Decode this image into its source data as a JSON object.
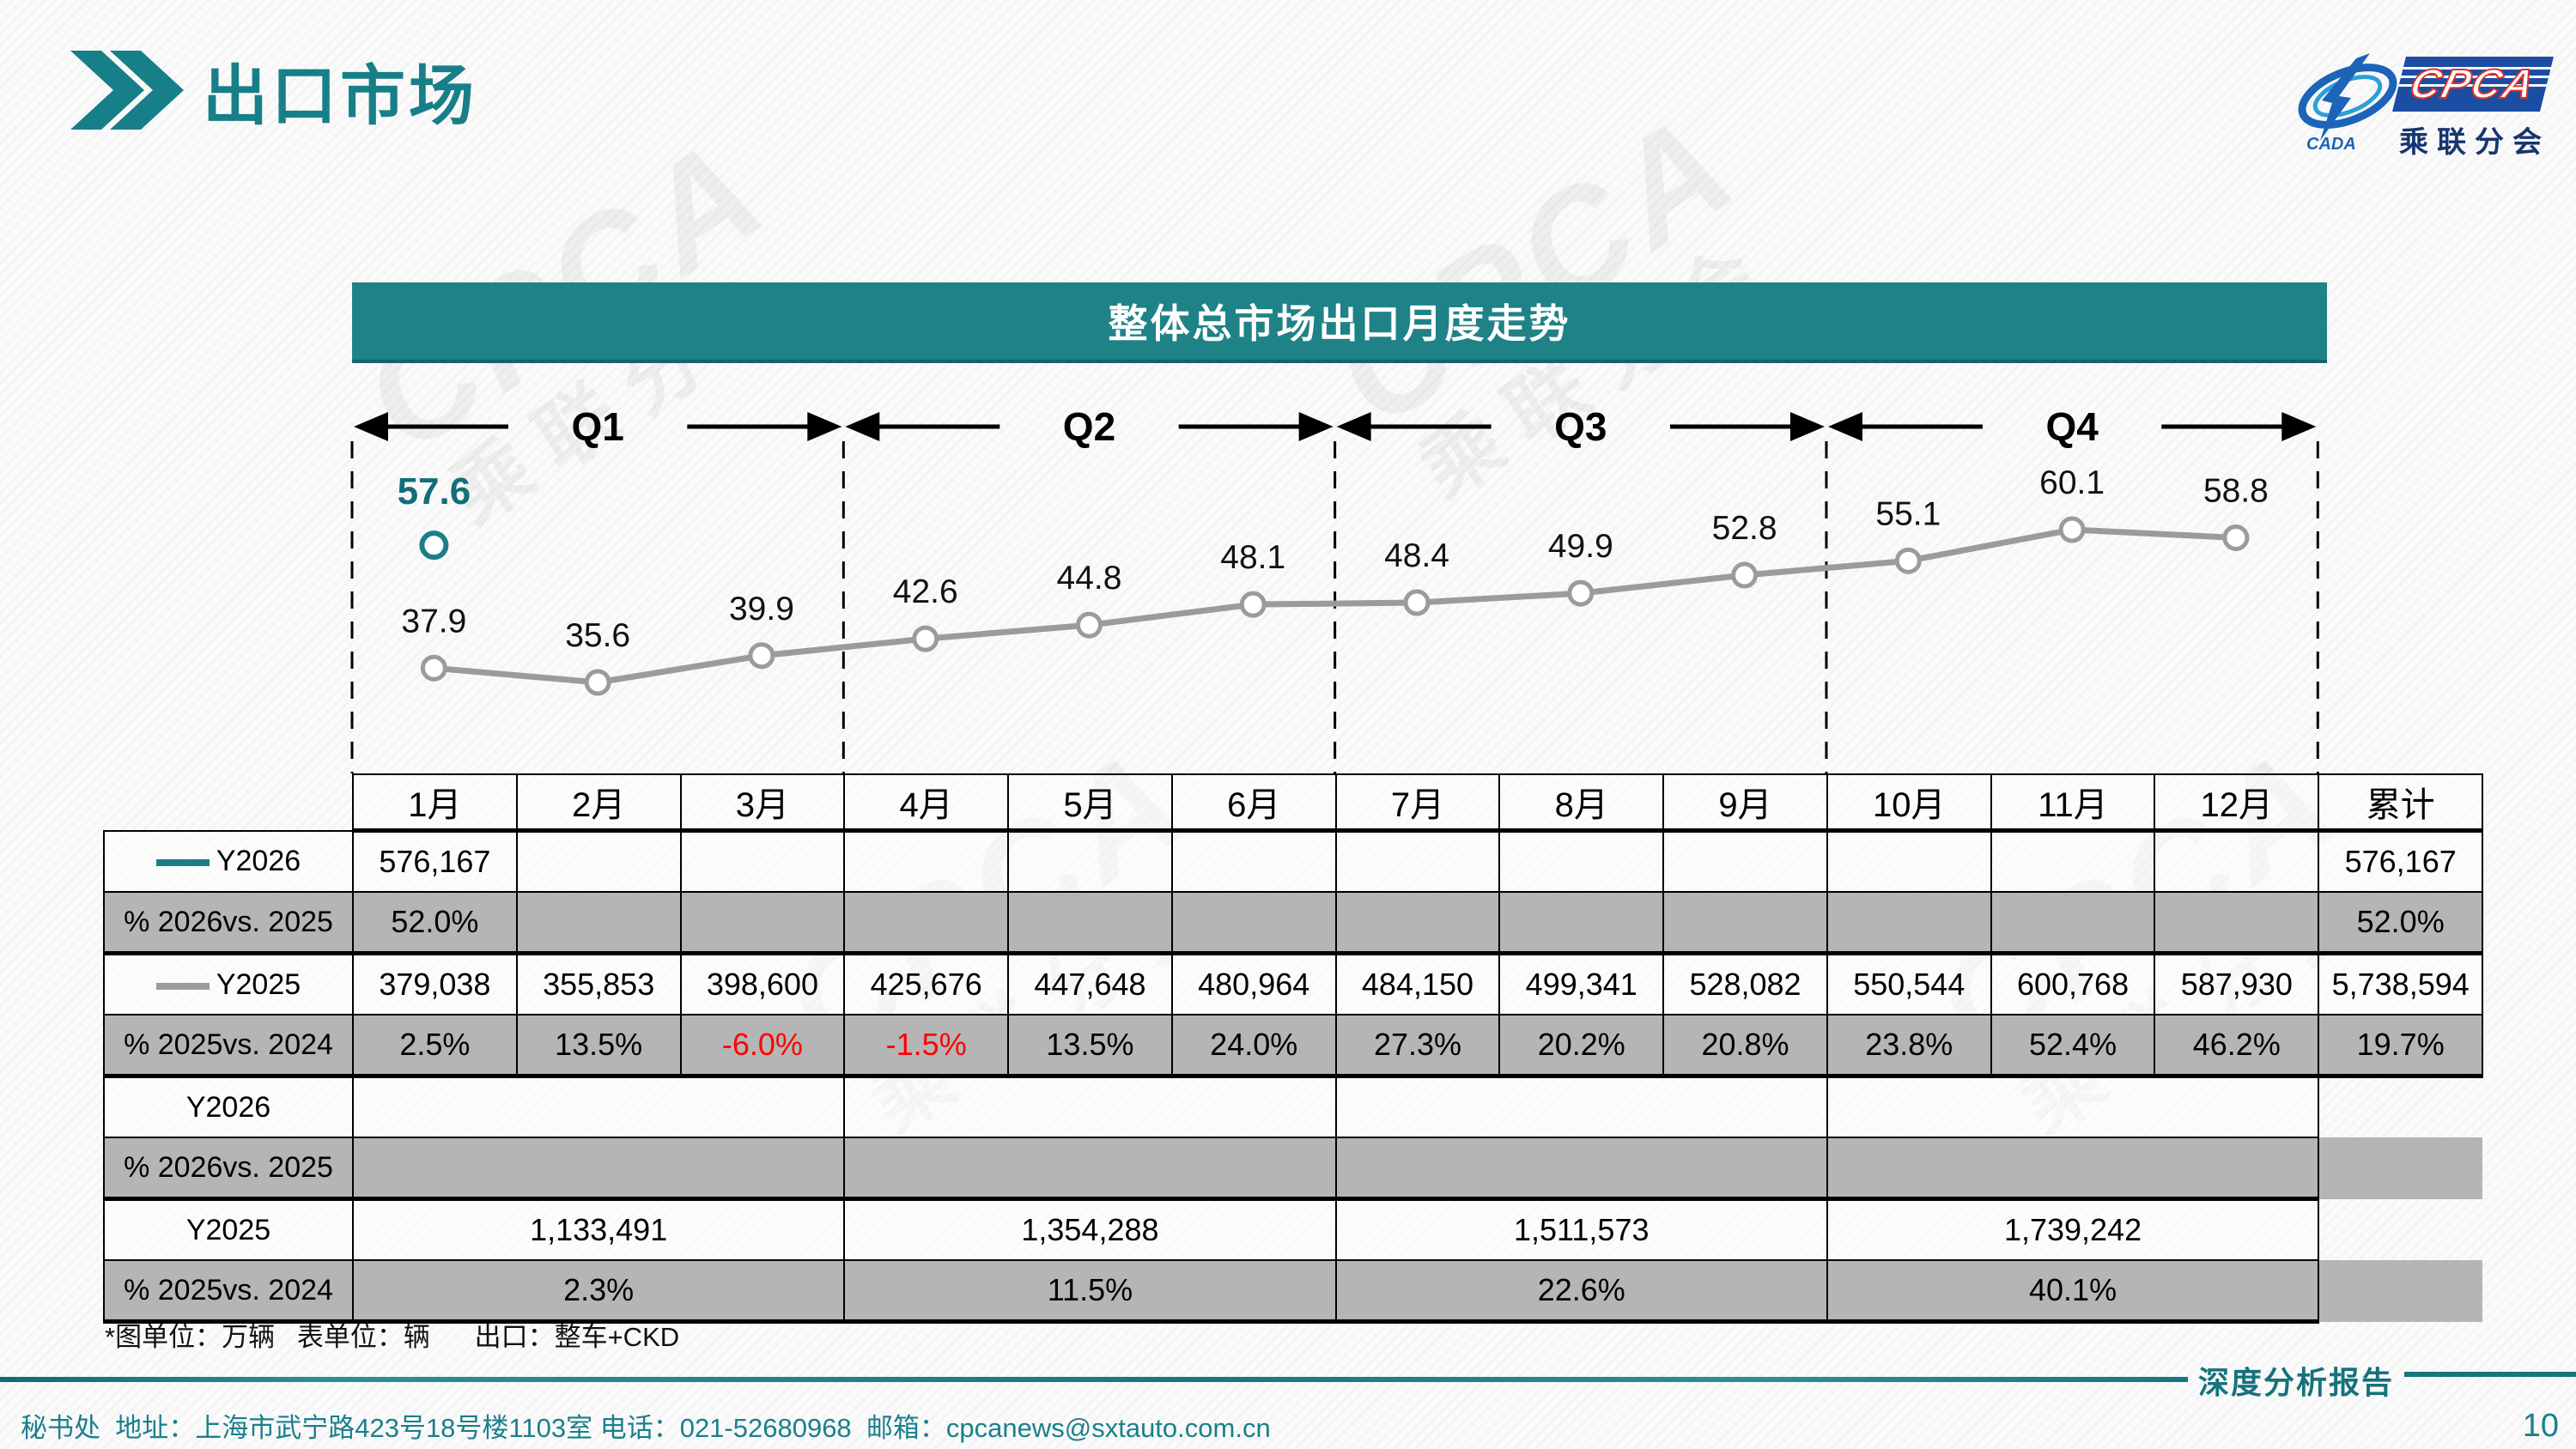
{
  "page": {
    "title": "出口市场",
    "page_number": "10",
    "report_label": "深度分析报告",
    "footer_contact": "秘书处  地址：上海市武宁路423号18号楼1103室 电话：021-52680968  邮箱：cpcanews@sxtauto.com.cn",
    "footnote": "*图单位：万辆   表单位：辆      出口：整车+CKD"
  },
  "logo": {
    "cpca": "CPCA",
    "cada": "CADA",
    "subtitle": "乘联分会"
  },
  "colors": {
    "accent": "#1A7F87",
    "bar": "#1F8287",
    "teal_series": "#1A7F87",
    "gray_series": "#9B9B9B",
    "shaded_row": "#B5B5B5",
    "negative": "#FF0000",
    "label_black": "#111111"
  },
  "chart_header": "整体总市场出口月度走势",
  "quarters": [
    "Q1",
    "Q2",
    "Q3",
    "Q4"
  ],
  "chart_data": {
    "type": "line",
    "title": "整体总市场出口月度走势",
    "unit": "万辆",
    "x": [
      "1月",
      "2月",
      "3月",
      "4月",
      "5月",
      "6月",
      "7月",
      "8月",
      "9月",
      "10月",
      "11月",
      "12月"
    ],
    "series": [
      {
        "name": "Y2026",
        "color": "#1A7F87",
        "label_color": "#136E78",
        "values": [
          57.6,
          null,
          null,
          null,
          null,
          null,
          null,
          null,
          null,
          null,
          null,
          null
        ]
      },
      {
        "name": "Y2025",
        "color": "#9B9B9B",
        "label_color": "#111111",
        "values": [
          37.9,
          35.6,
          39.9,
          42.6,
          44.8,
          48.1,
          48.4,
          49.9,
          52.8,
          55.1,
          60.1,
          58.8
        ]
      }
    ],
    "ylim": [
      30,
      65
    ],
    "grid": false,
    "legend_position": "table-left-column"
  },
  "table": {
    "month_headers": [
      "1月",
      "2月",
      "3月",
      "4月",
      "5月",
      "6月",
      "7月",
      "8月",
      "9月",
      "10月",
      "11月",
      "12月"
    ],
    "total_header": "累计",
    "monthly_rows": [
      {
        "label": "Y2026",
        "swatch": "#1A7F87",
        "shaded": false,
        "values": [
          "576,167",
          "",
          "",
          "",
          "",
          "",
          "",
          "",
          "",
          "",
          "",
          ""
        ],
        "total": "576,167"
      },
      {
        "label": "% 2026vs. 2025",
        "shaded": true,
        "values": [
          "52.0%",
          "",
          "",
          "",
          "",
          "",
          "",
          "",
          "",
          "",
          "",
          ""
        ],
        "total": "52.0%"
      },
      {
        "label": "Y2025",
        "swatch": "#9B9B9B",
        "shaded": false,
        "values": [
          "379,038",
          "355,853",
          "398,600",
          "425,676",
          "447,648",
          "480,964",
          "484,150",
          "499,341",
          "528,082",
          "550,544",
          "600,768",
          "587,930"
        ],
        "total": "5,738,594"
      },
      {
        "label": "% 2025vs. 2024",
        "shaded": true,
        "values": [
          "2.5%",
          "13.5%",
          "-6.0%",
          "-1.5%",
          "13.5%",
          "24.0%",
          "27.3%",
          "20.2%",
          "20.8%",
          "23.8%",
          "52.4%",
          "46.2%"
        ],
        "total": "19.7%"
      }
    ],
    "quarterly_rows": [
      {
        "label": "Y2026",
        "shaded": false,
        "values": [
          "",
          "",
          "",
          ""
        ]
      },
      {
        "label": "% 2026vs. 2025",
        "shaded": true,
        "values": [
          "",
          "",
          "",
          ""
        ]
      },
      {
        "label": "Y2025",
        "shaded": false,
        "values": [
          "1,133,491",
          "1,354,288",
          "1,511,573",
          "1,739,242"
        ]
      },
      {
        "label": "% 2025vs. 2024",
        "shaded": true,
        "values": [
          "2.3%",
          "11.5%",
          "22.6%",
          "40.1%"
        ]
      }
    ]
  }
}
